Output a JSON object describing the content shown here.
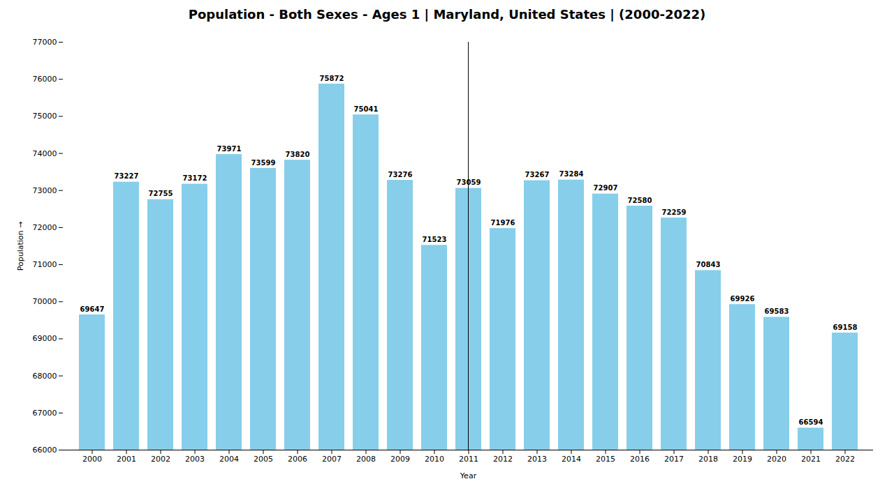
{
  "chart_data": {
    "type": "bar",
    "title": "Population - Both Sexes - Ages 1 | Maryland, United States |  (2000-2022)",
    "xlabel": "Year",
    "ylabel": "Population",
    "categories": [
      "2000",
      "2001",
      "2002",
      "2003",
      "2004",
      "2005",
      "2006",
      "2007",
      "2008",
      "2009",
      "2010",
      "2011",
      "2012",
      "2013",
      "2014",
      "2015",
      "2016",
      "2017",
      "2018",
      "2019",
      "2020",
      "2021",
      "2022"
    ],
    "values": [
      69647,
      73227,
      72755,
      73172,
      73971,
      73599,
      73820,
      75872,
      75041,
      73276,
      71523,
      73059,
      71976,
      73267,
      73284,
      72907,
      72580,
      72259,
      70843,
      69926,
      69583,
      66594,
      69158
    ],
    "color": "#87CEEB",
    "ylim": [
      66000,
      77000
    ],
    "yticks": [
      66000,
      67000,
      68000,
      69000,
      70000,
      71000,
      72000,
      73000,
      74000,
      75000,
      76000,
      77000
    ],
    "grid": false,
    "data_labels": true
  }
}
